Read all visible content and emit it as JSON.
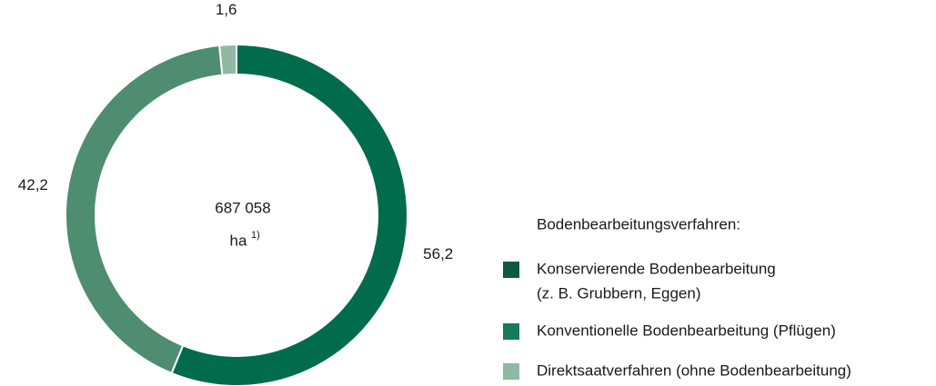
{
  "chart_data": {
    "type": "donut",
    "center_label": [
      "687 058",
      "ha"
    ],
    "center_note": "1)",
    "legend_title": "Bodenbearbeitungsverfahren:",
    "categories": [
      [
        "Konservierende Bodenbearbeitung",
        "(z. B. Grubbern, Eggen)"
      ],
      [
        "Konventionelle Bodenbearbeitung (Pflügen)"
      ],
      [
        "Direktsaatverfahren (ohne Bodenbearbeitung)"
      ]
    ],
    "legend_colors": [
      "#0d5a40",
      "#177a5a",
      "#8fb9a3"
    ],
    "values": [
      56.2,
      42.2,
      1.6
    ],
    "value_labels": [
      "56,2",
      "42,2",
      "1,6"
    ],
    "colors": [
      "#006c4c",
      "#4e8d6f",
      "#8fb9a3"
    ]
  }
}
